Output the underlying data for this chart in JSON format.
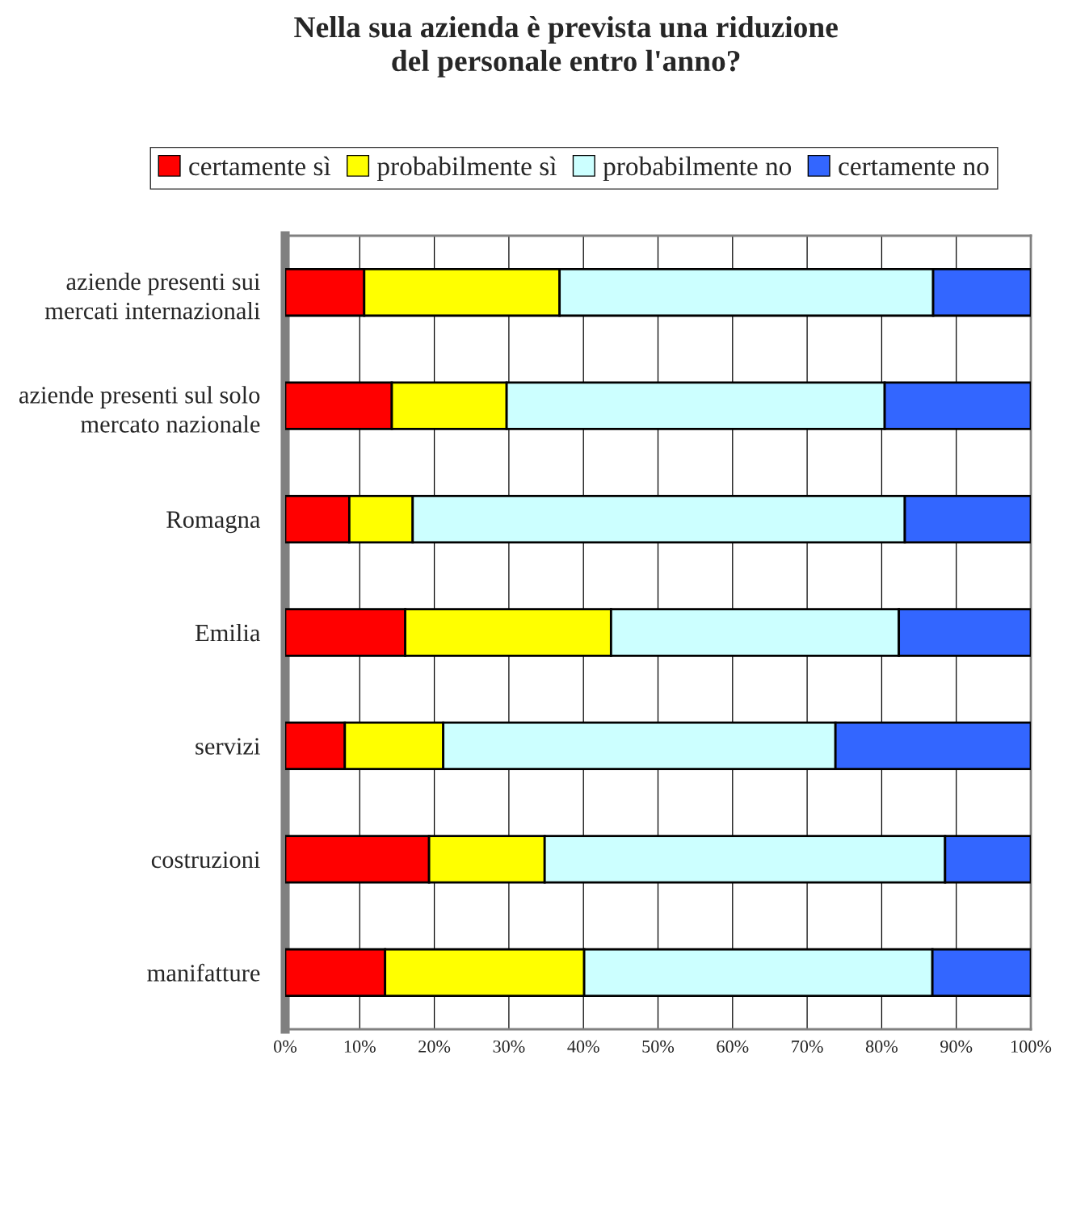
{
  "chart_data": {
    "type": "bar",
    "orientation": "horizontal",
    "stacked": true,
    "title": "Nella sua azienda è prevista una riduzione\ndel personale entro l'anno?",
    "categories": [
      "aziende presenti sui\nmercati internazionali",
      "aziende presenti sul solo\nmercato nazionale",
      "Romagna",
      "Emilia",
      "servizi",
      "costruzioni",
      "manifatture"
    ],
    "series": [
      {
        "name": "certamente sì",
        "color": "#ff0000",
        "values": [
          10.6,
          14.3,
          8.6,
          16.1,
          8.0,
          19.3,
          13.4
        ]
      },
      {
        "name": "probabilmente sì",
        "color": "#ffff00",
        "values": [
          26.2,
          15.4,
          8.5,
          27.6,
          13.2,
          15.5,
          26.7
        ]
      },
      {
        "name": "probabilmente no",
        "color": "#ccffff",
        "values": [
          50.1,
          50.7,
          66.0,
          38.6,
          52.6,
          53.7,
          46.7
        ]
      },
      {
        "name": "certamente no",
        "color": "#3366ff",
        "values": [
          13.1,
          19.6,
          16.9,
          17.7,
          26.2,
          11.5,
          13.2
        ]
      }
    ],
    "xlim": [
      0,
      100
    ],
    "xticks": [
      {
        "value": 0,
        "label": "0%"
      },
      {
        "value": 10,
        "label": "10%"
      },
      {
        "value": 20,
        "label": "20%"
      },
      {
        "value": 30,
        "label": "30%"
      },
      {
        "value": 40,
        "label": "40%"
      },
      {
        "value": 50,
        "label": "50%"
      },
      {
        "value": 60,
        "label": "60%"
      },
      {
        "value": 70,
        "label": "70%"
      },
      {
        "value": 80,
        "label": "80%"
      },
      {
        "value": 90,
        "label": "90%"
      },
      {
        "value": 100,
        "label": "100%"
      }
    ],
    "grid": "x",
    "legend": "top"
  }
}
